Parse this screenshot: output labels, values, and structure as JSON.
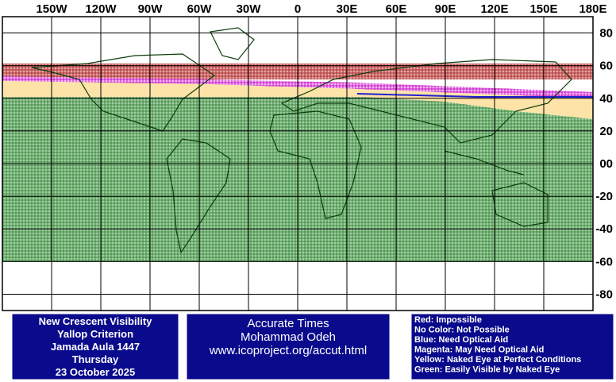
{
  "map": {
    "lon_labels": [
      "150W",
      "120W",
      "90W",
      "60W",
      "30W",
      "0",
      "30E",
      "60E",
      "90E",
      "120E",
      "150E",
      "180E"
    ],
    "lat_labels": [
      "80",
      "60",
      "40",
      "20",
      "00",
      "-20",
      "-40",
      "-60",
      "-80"
    ]
  },
  "info_box": {
    "lines": [
      "New Crescent Visibility",
      "Yallop Criterion",
      "Jamada Aula 1447",
      "Thursday",
      "23 October 2025"
    ]
  },
  "credit_box": {
    "lines": [
      "Accurate Times",
      "Mohammad Odeh",
      "www.icoproject.org/accut.html"
    ]
  },
  "legend": {
    "lines": [
      "Red: Impossible",
      "No Color: Not Possible",
      "Blue: Need Optical Aid",
      "Magenta: May Need Optical Aid",
      "Yellow: Naked Eye at Perfect Conditions",
      "Green: Easily Visible by Naked Eye"
    ]
  }
}
